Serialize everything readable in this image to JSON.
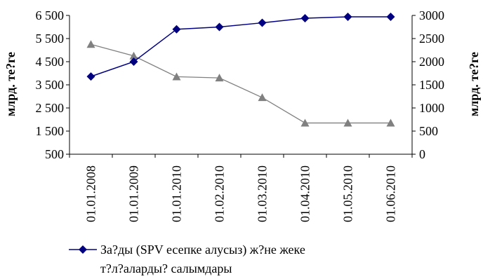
{
  "chart_data": {
    "type": "line",
    "categories": [
      "01.01.2008",
      "01.01.2009",
      "01.01.2010",
      "01.02.2010",
      "01.03.2010",
      "01.04.2010",
      "01.05.2010",
      "01.06.2010"
    ],
    "series": [
      {
        "name": "За?ды (SPV есепке алусыз) ж?не жеке т?л?аларды? салымдары",
        "axis": "right",
        "color": "#000080",
        "marker": "diamond",
        "values": [
          1680,
          2000,
          2700,
          2750,
          2840,
          2940,
          2970,
          2970
        ]
      },
      {
        "axis": "left",
        "color": "#808080",
        "marker": "triangle",
        "values": [
          5250,
          4750,
          3850,
          3800,
          2950,
          1850,
          1850,
          1850
        ]
      }
    ],
    "left_axis": {
      "label": "млрд. те?ге",
      "ticks": [
        "6 500",
        "5 500",
        "4 500",
        "3 500",
        "2 500",
        "1 500",
        "500"
      ],
      "ylim": [
        500,
        6500
      ],
      "tick_scale": "nonuniform"
    },
    "right_axis": {
      "label": "млрд. те?ге",
      "ticks": [
        "3000",
        "2500",
        "2000",
        "1500",
        "1000",
        "500",
        "0"
      ],
      "ylim": [
        0,
        3000
      ]
    },
    "legend": {
      "placement": "bottom",
      "line1": "За?ды (SPV есепке алусыз) ж?не жеке",
      "line2": "т?л?аларды? салымдары"
    },
    "grid": false
  }
}
